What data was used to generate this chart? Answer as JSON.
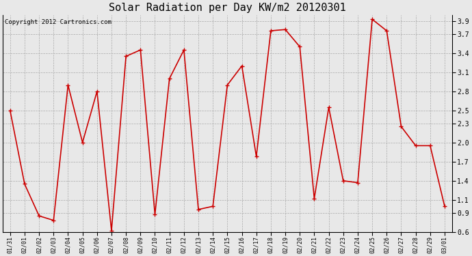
{
  "title": "Solar Radiation per Day KW/m2 20120301",
  "copyright": "Copyright 2012 Cartronics.com",
  "dates": [
    "01/31",
    "02/01",
    "02/02",
    "02/03",
    "02/04",
    "02/05",
    "02/06",
    "02/07",
    "02/08",
    "02/09",
    "02/10",
    "02/11",
    "02/12",
    "02/13",
    "02/14",
    "02/15",
    "02/16",
    "02/17",
    "02/18",
    "02/19",
    "02/20",
    "02/21",
    "02/22",
    "02/23",
    "02/24",
    "02/25",
    "02/26",
    "02/27",
    "02/28",
    "02/29",
    "03/01"
  ],
  "values": [
    2.5,
    1.35,
    0.85,
    0.78,
    2.9,
    2.0,
    2.8,
    0.62,
    3.35,
    3.45,
    0.87,
    3.0,
    3.45,
    0.95,
    1.0,
    2.9,
    3.2,
    1.78,
    3.75,
    3.77,
    3.5,
    1.12,
    2.55,
    1.4,
    1.37,
    3.93,
    3.75,
    2.25,
    1.95,
    1.95,
    1.0
  ],
  "line_color": "#cc0000",
  "marker": "+",
  "marker_color": "#cc0000",
  "bg_color": "#e8e8e8",
  "grid_color": "#aaaaaa",
  "ylim": [
    0.6,
    4.0
  ],
  "yticks": [
    0.6,
    0.9,
    1.1,
    1.4,
    1.7,
    2.0,
    2.3,
    2.5,
    2.8,
    3.1,
    3.4,
    3.7,
    3.9
  ],
  "title_fontsize": 11,
  "copyright_fontsize": 6.5,
  "tick_fontsize": 7,
  "xtick_fontsize": 6
}
